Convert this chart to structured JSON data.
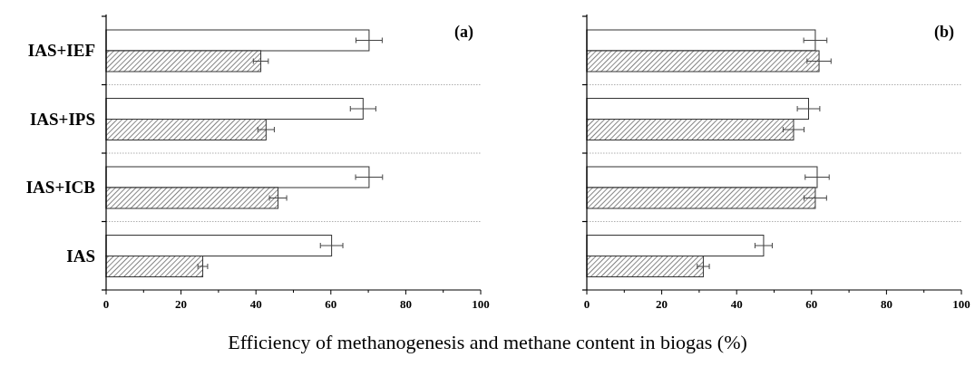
{
  "chart_data": [
    {
      "type": "bar",
      "orientation": "horizontal",
      "title": "(a)",
      "xlabel": "Efficiency of methanogenesis and methane content in biogas (%)",
      "categories": [
        "IAS+IEF",
        "IAS+IPS",
        "IAS+ICB",
        "IAS"
      ],
      "series": [
        {
          "color": "#ffffff",
          "values": [
            70.2,
            68.6,
            70.2,
            60.2
          ],
          "errors": [
            3.5,
            3.4,
            3.6,
            3.0
          ]
        },
        {
          "type": "bar",
          "color": "#333333",
          "values": [
            41.3,
            42.7,
            45.9,
            25.8
          ],
          "errors": [
            2.0,
            2.2,
            2.3,
            1.3
          ]
        }
      ],
      "xlim": [
        0,
        100
      ],
      "xticks": [
        0,
        {
          "value": 10,
          "label": null
        },
        20,
        {
          "value": 30,
          "label": null
        },
        40,
        {
          "value": 50,
          "label": null
        },
        60,
        {
          "value": 70,
          "label": null
        },
        80,
        {
          "value": 90,
          "label": null
        },
        100
      ],
      "grid": "y"
    },
    {
      "type": "bar",
      "orientation": "horizontal",
      "title": "(b)",
      "categories": [
        null,
        null,
        null,
        null
      ],
      "series": [
        {
          "color": "#ffffff",
          "values": [
            61.0,
            59.2,
            61.5,
            47.2
          ],
          "errors": [
            3.1,
            3.0,
            3.2,
            2.3
          ]
        },
        {
          "type": "bar",
          "color": "#333333",
          "values": [
            62.0,
            55.2,
            61.0,
            31.1
          ],
          "errors": [
            3.2,
            2.8,
            3.0,
            1.6
          ]
        }
      ],
      "xlim": [
        0,
        100
      ],
      "xticks": [
        0,
        {
          "value": 10,
          "label": null
        },
        20,
        {
          "value": 30,
          "label": null
        },
        40,
        {
          "value": 50,
          "label": null
        },
        60,
        {
          "value": 70,
          "label": null
        },
        80,
        {
          "value": 90,
          "label": null
        },
        100
      ],
      "grid": "y"
    }
  ]
}
